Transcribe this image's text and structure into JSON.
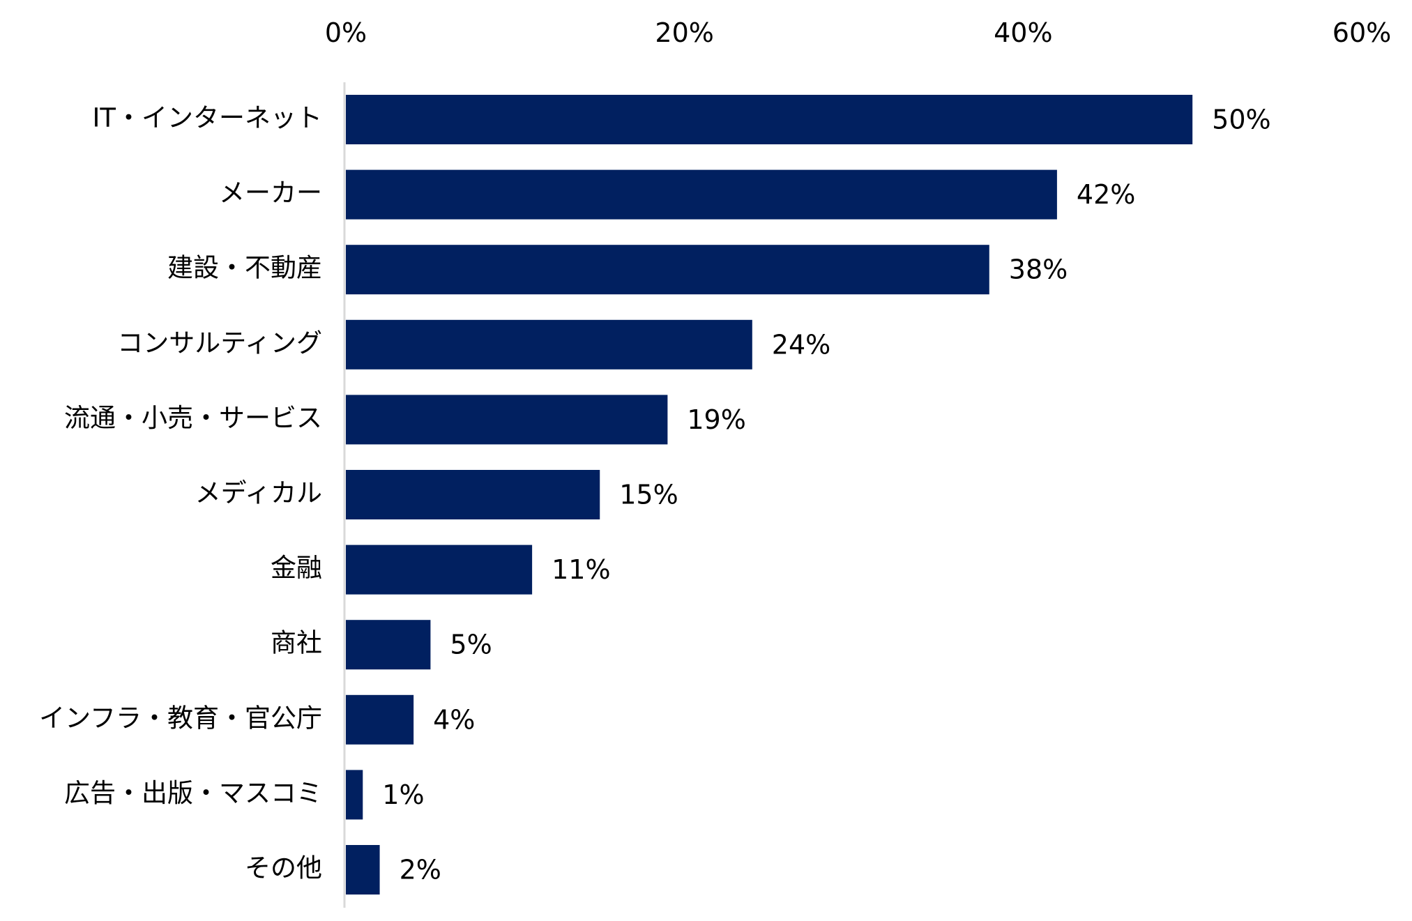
{
  "chart_data": {
    "type": "bar",
    "orientation": "horizontal",
    "categories": [
      "IT・インターネット",
      "メーカー",
      "建設・不動産",
      "コンサルティング",
      "流通・小売・サービス",
      "メディカル",
      "金融",
      "商社",
      "インフラ・教育・官公庁",
      "広告・出版・マスコミ",
      "その他"
    ],
    "values": [
      50,
      42,
      38,
      24,
      19,
      15,
      11,
      5,
      4,
      1,
      2
    ],
    "data_labels": [
      "50%",
      "42%",
      "38%",
      "24%",
      "19%",
      "15%",
      "11%",
      "5%",
      "4%",
      "1%",
      "2%"
    ],
    "x_ticks": [
      "0%",
      "20%",
      "40%",
      "60%"
    ],
    "x_tick_values": [
      0,
      20,
      40,
      60
    ],
    "xlim": [
      0,
      60
    ],
    "x_axis_position": "top",
    "grid": false,
    "legend": "none",
    "bar_color": "#012060",
    "axis_color": "#d9d9d9"
  }
}
